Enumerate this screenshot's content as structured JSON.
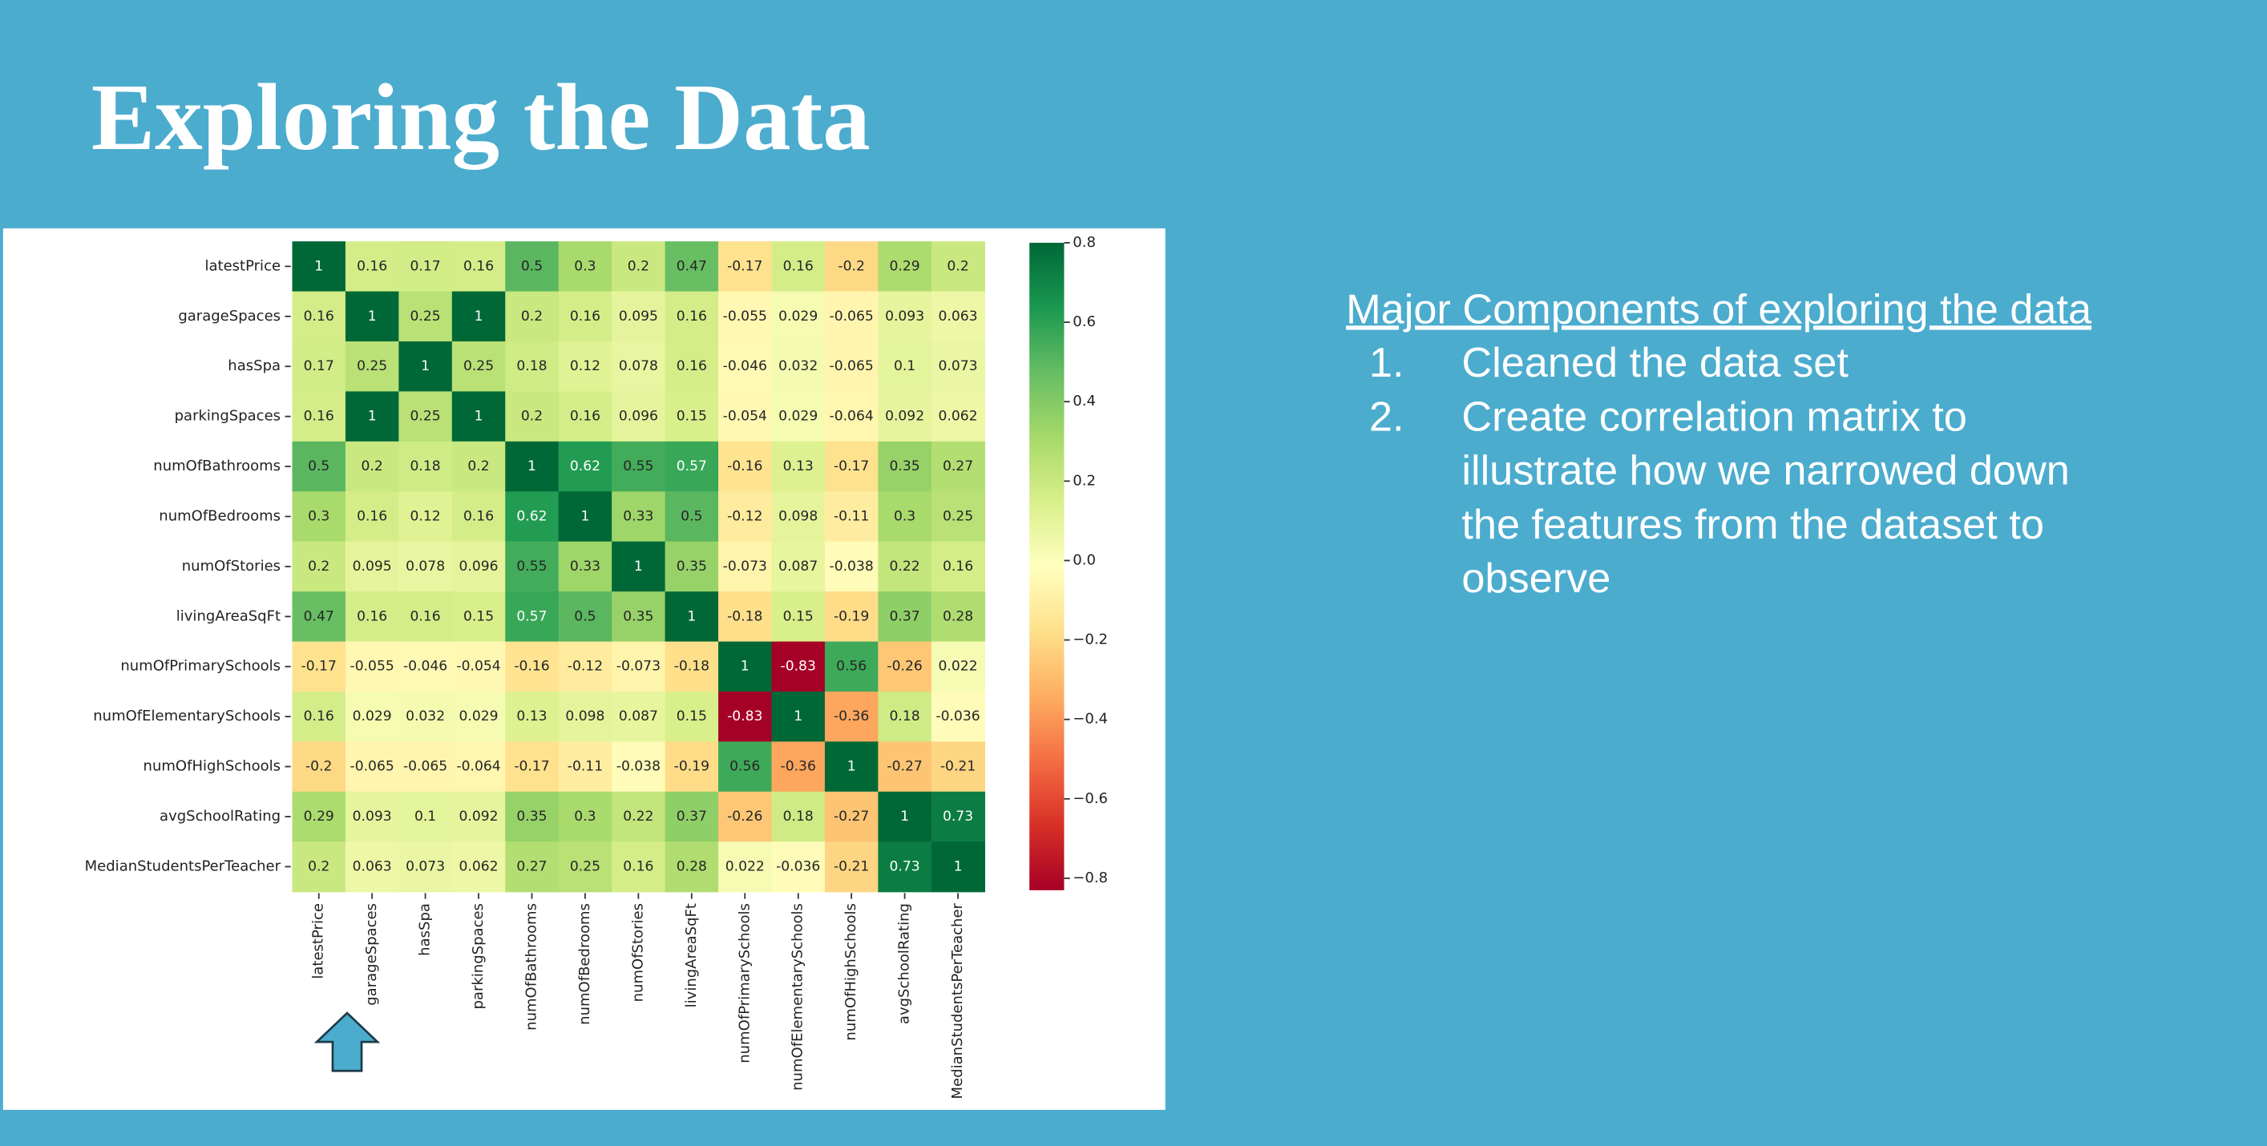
{
  "slide": {
    "title": "Exploring the Data",
    "heading": "Major Components of exploring the data",
    "items": [
      {
        "number": "1.",
        "lines": [
          "Cleaned the data set"
        ]
      },
      {
        "number": "2.",
        "lines": [
          "Create correlation matrix to",
          "illustrate how we narrowed down",
          "the features from the dataset to",
          "observe"
        ]
      }
    ]
  },
  "chart_data": {
    "type": "heatmap",
    "colormap": "RdYlGn",
    "x": [
      "latestPrice",
      "garageSpaces",
      "hasSpa",
      "parkingSpaces",
      "numOfBathrooms",
      "numOfBedrooms",
      "numOfStories",
      "livingAreaSqFt",
      "numOfPrimarySchools",
      "numOfElementarySchools",
      "numOfHighSchools",
      "avgSchoolRating",
      "MedianStudentsPerTeacher"
    ],
    "y": [
      "latestPrice",
      "garageSpaces",
      "hasSpa",
      "parkingSpaces",
      "numOfBathrooms",
      "numOfBedrooms",
      "numOfStories",
      "livingAreaSqFt",
      "numOfPrimarySchools",
      "numOfElementarySchools",
      "numOfHighSchools",
      "avgSchoolRating",
      "MedianStudentsPerTeacher"
    ],
    "z": [
      [
        1,
        0.16,
        0.17,
        0.16,
        0.5,
        0.3,
        0.2,
        0.47,
        -0.17,
        0.16,
        -0.2,
        0.29,
        0.2
      ],
      [
        0.16,
        1,
        0.25,
        1,
        0.2,
        0.16,
        0.095,
        0.16,
        -0.055,
        0.029,
        -0.065,
        0.093,
        0.063
      ],
      [
        0.17,
        0.25,
        1,
        0.25,
        0.18,
        0.12,
        0.078,
        0.16,
        -0.046,
        0.032,
        -0.065,
        0.1,
        0.073
      ],
      [
        0.16,
        1,
        0.25,
        1,
        0.2,
        0.16,
        0.096,
        0.15,
        -0.054,
        0.029,
        -0.064,
        0.092,
        0.062
      ],
      [
        0.5,
        0.2,
        0.18,
        0.2,
        1,
        0.62,
        0.55,
        0.57,
        -0.16,
        0.13,
        -0.17,
        0.35,
        0.27
      ],
      [
        0.3,
        0.16,
        0.12,
        0.16,
        0.62,
        1,
        0.33,
        0.5,
        -0.12,
        0.098,
        -0.11,
        0.3,
        0.25
      ],
      [
        0.2,
        0.095,
        0.078,
        0.096,
        0.55,
        0.33,
        1,
        0.35,
        -0.073,
        0.087,
        -0.038,
        0.22,
        0.16
      ],
      [
        0.47,
        0.16,
        0.16,
        0.15,
        0.57,
        0.5,
        0.35,
        1,
        -0.18,
        0.15,
        -0.19,
        0.37,
        0.28
      ],
      [
        -0.17,
        -0.055,
        -0.046,
        -0.054,
        -0.16,
        -0.12,
        -0.073,
        -0.18,
        1,
        -0.83,
        0.56,
        -0.26,
        0.022
      ],
      [
        0.16,
        0.029,
        0.032,
        0.029,
        0.13,
        0.098,
        0.087,
        0.15,
        -0.83,
        1,
        -0.36,
        0.18,
        -0.036
      ],
      [
        -0.2,
        -0.065,
        -0.065,
        -0.064,
        -0.17,
        -0.11,
        -0.038,
        -0.19,
        0.56,
        -0.36,
        1,
        -0.27,
        -0.21
      ],
      [
        0.29,
        0.093,
        0.1,
        0.092,
        0.35,
        0.3,
        0.22,
        0.37,
        -0.26,
        0.18,
        -0.27,
        1,
        0.73
      ],
      [
        0.2,
        0.063,
        0.073,
        0.062,
        0.27,
        0.25,
        0.16,
        0.28,
        0.022,
        -0.036,
        -0.21,
        0.73,
        1
      ]
    ],
    "clim": [
      -0.83,
      0.8
    ],
    "cticks": [
      0.8,
      0.6,
      0.4,
      0.2,
      {
        "value": 0,
        "label": "0.0"
      },
      {
        "value": -0.2,
        "label": "−0.2"
      },
      {
        "value": -0.4,
        "label": "−0.4"
      },
      {
        "value": -0.6,
        "label": "−0.6"
      },
      {
        "value": -0.8,
        "label": "−0.8"
      }
    ]
  }
}
